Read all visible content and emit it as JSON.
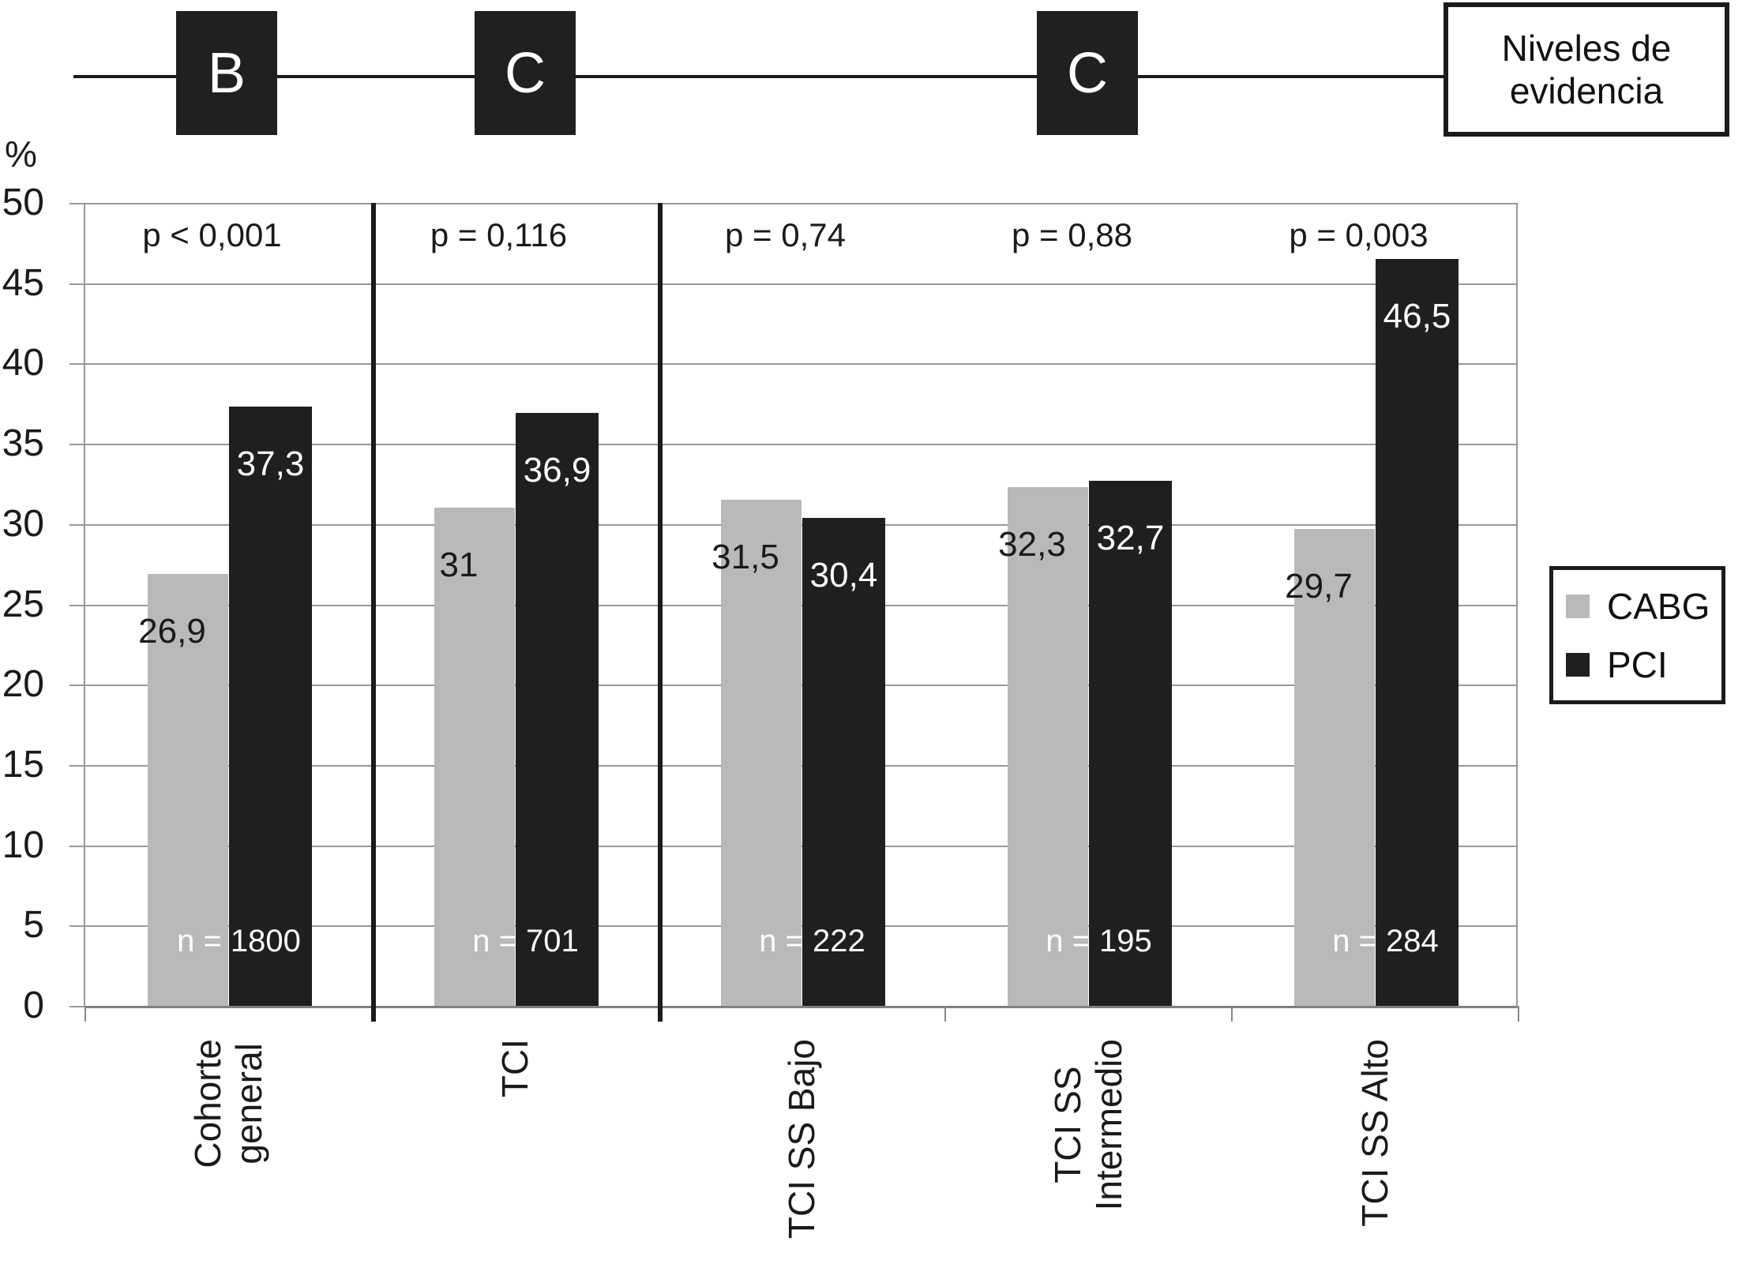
{
  "evidence": {
    "title_lines": [
      "Niveles de",
      "evidencia"
    ],
    "levels": [
      "B",
      "C",
      "C"
    ]
  },
  "y_axis": {
    "unit": "%",
    "ticks": [
      "50",
      "45",
      "40",
      "35",
      "30",
      "25",
      "20",
      "15",
      "10",
      "5",
      "0"
    ]
  },
  "legend": {
    "items": [
      {
        "label": "CABG",
        "color": "#b9b9b9"
      },
      {
        "label": "PCI",
        "color": "#211e1e"
      }
    ]
  },
  "chart_data": {
    "type": "bar",
    "title": "",
    "xlabel": "",
    "ylabel": "%",
    "ylim": [
      0,
      50
    ],
    "grid": true,
    "legend_position": "right",
    "categories": [
      "Cohorte general",
      "TCI",
      "TCI SS Bajo",
      "TCI SS Intermedio",
      "TCI SS Alto"
    ],
    "series": [
      {
        "name": "CABG",
        "color": "#b9b9b9",
        "values": [
          26.9,
          31,
          31.5,
          32.3,
          29.7
        ]
      },
      {
        "name": "PCI",
        "color": "#211e1e",
        "values": [
          37.3,
          36.9,
          30.4,
          32.7,
          46.5
        ]
      }
    ],
    "evidence_levels": [
      "B",
      "C",
      "C"
    ],
    "groups": [
      {
        "category_lines": [
          "Cohorte",
          "general"
        ],
        "p_label": "p < 0,001",
        "n_label": "n = 1800",
        "cabg_label": "26,9",
        "pci_label": "37,3"
      },
      {
        "category_lines": [
          "TCI"
        ],
        "p_label": "p = 0,116",
        "n_label": "n = 701",
        "cabg_label": "31",
        "pci_label": "36,9"
      },
      {
        "category_lines": [
          "TCI SS Bajo"
        ],
        "p_label": "p = 0,74",
        "n_label": "n = 222",
        "cabg_label": "31,5",
        "pci_label": "30,4"
      },
      {
        "category_lines": [
          "TCI SS",
          "Intermedio"
        ],
        "p_label": "p = 0,88",
        "n_label": "n = 195",
        "cabg_label": "32,3",
        "pci_label": "32,7"
      },
      {
        "category_lines": [
          "TCI SS Alto"
        ],
        "p_label": "p = 0,003",
        "n_label": "n = 284",
        "cabg_label": "29,7",
        "pci_label": "46,5"
      }
    ]
  }
}
